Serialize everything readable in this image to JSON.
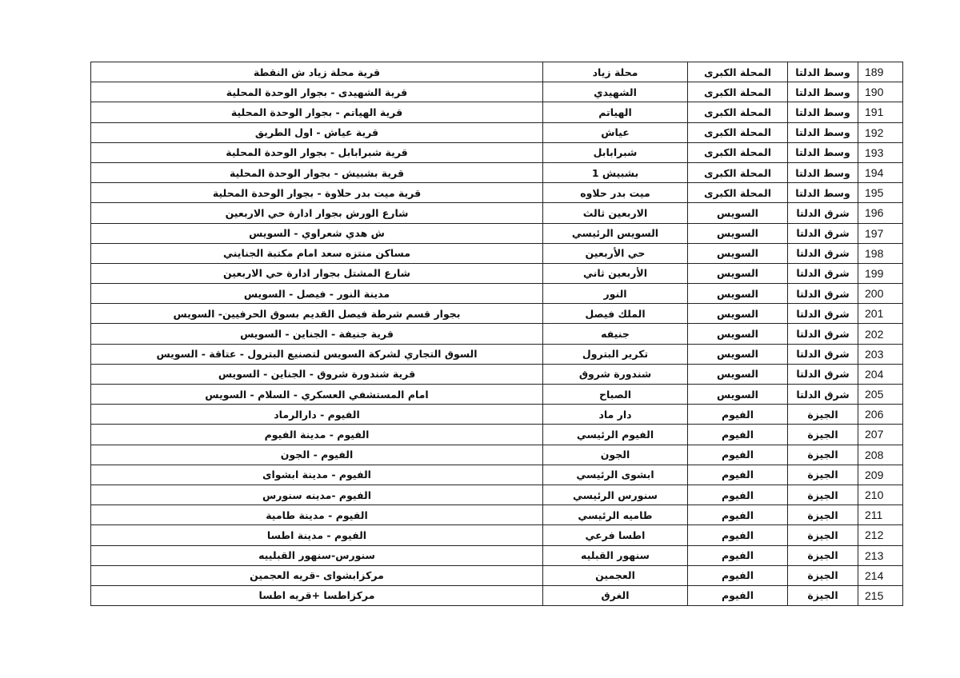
{
  "rows": [
    {
      "no": "189",
      "region": "وسط الدلتا",
      "governorate": "المحلة الكبرى",
      "area": "محلة زياد",
      "address": "قرية محلة زياد ش النقطة"
    },
    {
      "no": "190",
      "region": "وسط الدلتا",
      "governorate": "المحلة الكبرى",
      "area": "الشهيدي",
      "address": "قرية الشهيدى - بجوار الوحدة المحلية"
    },
    {
      "no": "191",
      "region": "وسط الدلتا",
      "governorate": "المحلة الكبرى",
      "area": "الهياتم",
      "address": "قرية الهياتم  - بجوار الوحدة المحلية"
    },
    {
      "no": "192",
      "region": "وسط الدلتا",
      "governorate": "المحلة الكبرى",
      "area": "عياش",
      "address": "قرية عياش - اول الطريق"
    },
    {
      "no": "193",
      "region": "وسط الدلتا",
      "governorate": "المحلة الكبرى",
      "area": "شبرابابل",
      "address": "قرية شبرابابل - بجوار الوحدة المحلية"
    },
    {
      "no": "194",
      "region": "وسط الدلتا",
      "governorate": "المحلة الكبرى",
      "area": "بشبيش 1",
      "address": "قرية بشبيش  - بجوار الوحدة المحلية"
    },
    {
      "no": "195",
      "region": "وسط الدلتا",
      "governorate": "المحلة الكبرى",
      "area": "ميت بدر حلاوه",
      "address": "قرية ميت بدر حلاوة - بجوار الوحدة المحلية"
    },
    {
      "no": "196",
      "region": "شرق الدلتا",
      "governorate": "السويس",
      "area": "الاربعين ثالث",
      "address": "شارع الورش بجوار ادارة حي الاربعين"
    },
    {
      "no": "197",
      "region": "شرق الدلتا",
      "governorate": "السويس",
      "area": "السويس الرئيسي",
      "address": "ش هدي شعراوي - السويس"
    },
    {
      "no": "198",
      "region": "شرق الدلتا",
      "governorate": "السويس",
      "area": "حي الأربعين",
      "address": "مساكن منتزه سعد امام مكتبة الجنايني"
    },
    {
      "no": "199",
      "region": "شرق الدلتا",
      "governorate": "السويس",
      "area": "الأربعين ثاني",
      "address": "شارع المشتل بجوار ادارة حي الاربعين"
    },
    {
      "no": "200",
      "region": "شرق الدلتا",
      "governorate": "السويس",
      "area": "النور",
      "address": "مدينة النور - فيصل - السويس"
    },
    {
      "no": "201",
      "region": "شرق الدلتا",
      "governorate": "السويس",
      "area": "الملك فيصل",
      "address": "بجوار قسم شرطة فيصل القديم بسوق الحرفيين- السويس"
    },
    {
      "no": "202",
      "region": "شرق الدلتا",
      "governorate": "السويس",
      "area": "جنيفه",
      "address": "قرية جنيفة - الجناين - السويس"
    },
    {
      "no": "203",
      "region": "شرق الدلتا",
      "governorate": "السويس",
      "area": "تكرير البترول",
      "address": "السوق التجاري لشركة السويس لتصنيع البترول - عتاقة - السويس"
    },
    {
      "no": "204",
      "region": "شرق الدلتا",
      "governorate": "السويس",
      "area": "شندورة شروق",
      "address": "قرية شندورة شروق - الجناين - السويس"
    },
    {
      "no": "205",
      "region": "شرق الدلتا",
      "governorate": "السويس",
      "area": "الصباح",
      "address": "امام المستشفي العسكري - السلام - السويس"
    },
    {
      "no": "206",
      "region": "الجيزة",
      "governorate": "الفيوم",
      "area": "دار ماد",
      "address": "الفيوم - دارالرماد"
    },
    {
      "no": "207",
      "region": "الجيزة",
      "governorate": "الفيوم",
      "area": "الفيوم الرئيسي",
      "address": "الفيوم - مدينة الفيوم"
    },
    {
      "no": "208",
      "region": "الجيزة",
      "governorate": "الفيوم",
      "area": "الجون",
      "address": "الفيوم - الجون"
    },
    {
      "no": "209",
      "region": "الجيزة",
      "governorate": "الفيوم",
      "area": "ابشوى الرئيسي",
      "address": "الفيوم - مدينة ابشواى"
    },
    {
      "no": "210",
      "region": "الجيزة",
      "governorate": "الفيوم",
      "area": "سنورس الرئيسي",
      "address": "الفيوم -مدينه سنورس"
    },
    {
      "no": "211",
      "region": "الجيزة",
      "governorate": "الفيوم",
      "area": "طاميه الرئيسي",
      "address": "الفيوم - مدينة طامية"
    },
    {
      "no": "212",
      "region": "الجيزة",
      "governorate": "الفيوم",
      "area": "اطسا فرعي",
      "address": "الفيوم - مدينة اطسا"
    },
    {
      "no": "213",
      "region": "الجيزة",
      "governorate": "الفيوم",
      "area": "سنهور القبليه",
      "address": "سنورس-سنهور القبلييه"
    },
    {
      "no": "214",
      "region": "الجيزة",
      "governorate": "الفيوم",
      "area": "العجمين",
      "address": "مركزابشواى -قريه العجمين"
    },
    {
      "no": "215",
      "region": "الجيزة",
      "governorate": "الفيوم",
      "area": "الغرق",
      "address": "مركزاطسا +قريه اطسا"
    }
  ]
}
